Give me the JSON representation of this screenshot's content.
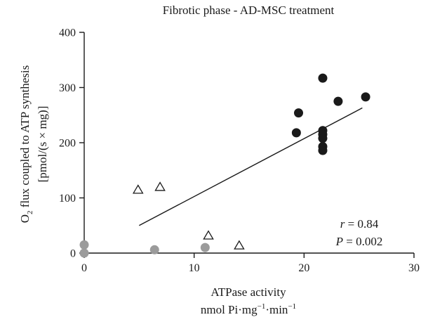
{
  "chart_data": {
    "type": "scatter",
    "title": "Fibrotic phase - AD-MSC treatment",
    "xlabel_line1": "ATPase activity",
    "xlabel_line2_prefix": "nmol Pi·mg",
    "xlabel_line2_sup1": "−1",
    "xlabel_line2_mid": "·min",
    "xlabel_line2_sup2": "−1",
    "ylabel_line1_prefix": "O",
    "ylabel_line1_sub": "2",
    "ylabel_line1_rest": " flux coupled to ATP synthesis",
    "ylabel_line2": "[pmol/(s × mg)]",
    "xlim": [
      0,
      30
    ],
    "ylim": [
      0,
      400
    ],
    "xticks": [
      0,
      10,
      20,
      30
    ],
    "yticks": [
      0,
      100,
      200,
      300,
      400
    ],
    "grid": false,
    "series": [
      {
        "marker": "filled-circle-black",
        "color": "#1a1a1a",
        "points": [
          [
            19.3,
            218
          ],
          [
            19.5,
            254
          ],
          [
            21.7,
            317
          ],
          [
            21.7,
            222
          ],
          [
            21.7,
            215
          ],
          [
            21.7,
            208
          ],
          [
            21.7,
            193
          ],
          [
            21.7,
            186
          ],
          [
            23.1,
            275
          ],
          [
            25.6,
            283
          ]
        ]
      },
      {
        "marker": "filled-circle-gray",
        "color": "#9b9b9b",
        "points": [
          [
            0,
            15
          ],
          [
            0,
            0
          ],
          [
            6.4,
            6
          ],
          [
            11.0,
            10
          ]
        ]
      },
      {
        "marker": "open-triangle",
        "color": "#1a1a1a",
        "points": [
          [
            4.9,
            114
          ],
          [
            6.9,
            119
          ],
          [
            11.3,
            31
          ],
          [
            14.1,
            13
          ]
        ]
      }
    ],
    "fit_line": {
      "x": [
        5.0,
        25.3
      ],
      "y": [
        50,
        263
      ]
    },
    "annotations": {
      "r_label": "r",
      "r_value": " = 0.84",
      "p_label": "P",
      "p_value": " = 0.002"
    }
  }
}
